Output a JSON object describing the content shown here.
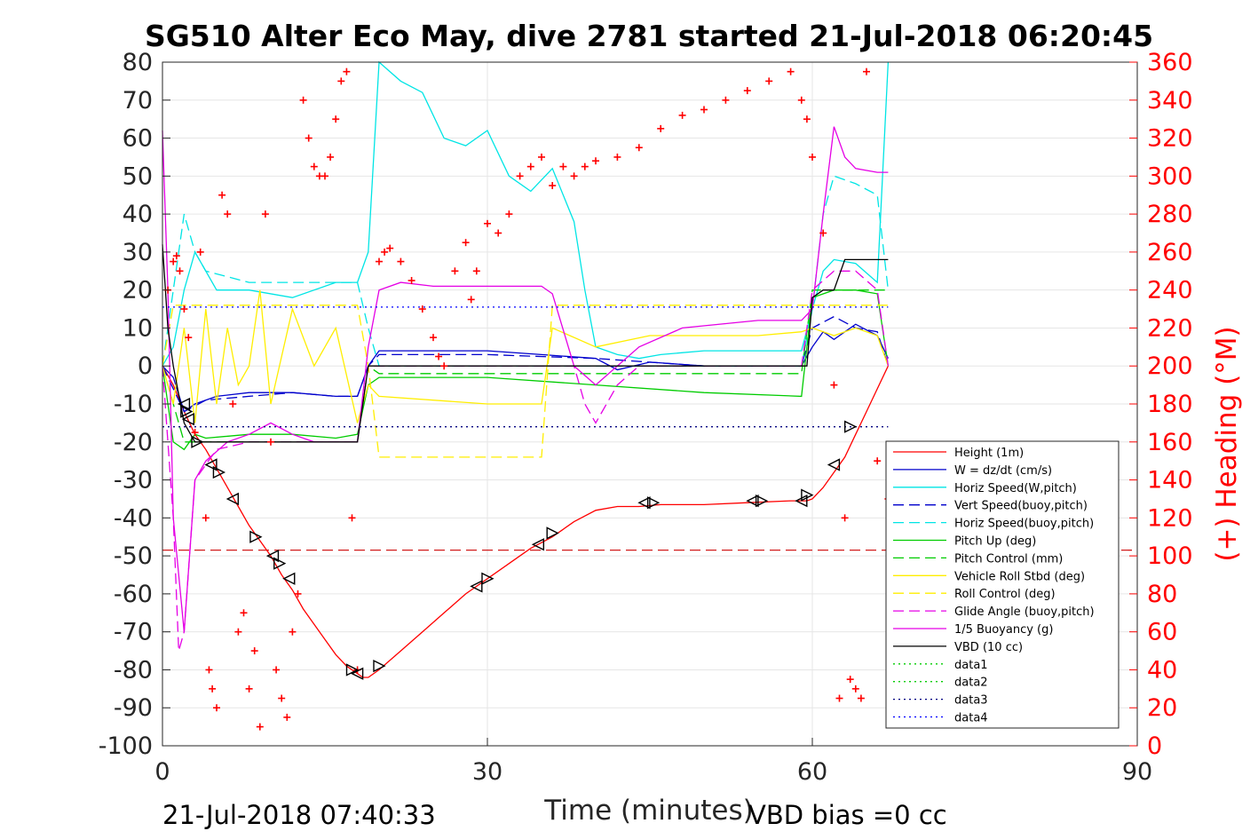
{
  "chart_data": {
    "type": "line",
    "title": "SG510 Alter Eco May, dive 2781 started 21-Jul-2018 06:20:45",
    "xlabel": "Time (minutes)",
    "ylabel_right": "(+) Heading (°M)",
    "xlim": [
      0,
      90
    ],
    "ylim_left": [
      -100,
      80
    ],
    "ylim_right": [
      0,
      360
    ],
    "x_ticks": [
      "0",
      "30",
      "60",
      "90"
    ],
    "y_ticks_left": [
      "80",
      "70",
      "60",
      "50",
      "40",
      "30",
      "20",
      "10",
      "0",
      "-10",
      "-20",
      "-30",
      "-40",
      "-50",
      "-60",
      "-70",
      "-80",
      "-90",
      "-100"
    ],
    "y_ticks_right": [
      "360",
      "340",
      "320",
      "300",
      "280",
      "260",
      "240",
      "220",
      "200",
      "180",
      "160",
      "140",
      "120",
      "100",
      "80",
      "60",
      "40",
      "20",
      "0"
    ],
    "grid": true,
    "legend_placement": "lower-right",
    "footer_left": "21-Jul-2018 07:40:33",
    "footer_right": "VBD bias =0 cc",
    "series": [
      {
        "name": "Height (1m)",
        "color": "#ff0000",
        "style": "solid",
        "x": [
          0,
          1,
          2,
          3,
          4,
          5,
          6,
          7,
          8,
          9,
          10,
          11,
          12,
          13,
          14,
          15,
          16,
          17,
          18,
          18.5,
          19,
          20,
          22,
          24,
          26,
          28,
          30,
          32,
          34,
          36,
          38,
          40,
          42,
          44,
          46,
          50,
          54,
          58,
          59.5,
          60,
          61,
          62,
          63,
          64,
          65,
          66,
          67
        ],
        "values": [
          0,
          -5,
          -12,
          -18,
          -22,
          -27,
          -32,
          -37,
          -42,
          -46,
          -50,
          -55,
          -59,
          -64,
          -68,
          -72,
          -76,
          -79,
          -81,
          -82,
          -82,
          -80,
          -75,
          -70,
          -65,
          -60,
          -56,
          -52,
          -48,
          -45,
          -41,
          -38,
          -37,
          -37,
          -36.5,
          -36.5,
          -36,
          -35.5,
          -35.5,
          -35,
          -32,
          -28,
          -24,
          -18,
          -12,
          -6,
          0
        ]
      },
      {
        "name": "W = dz/dt (cm/s)",
        "color": "#0000cc",
        "style": "solid",
        "x": [
          0,
          1,
          2,
          3,
          5,
          8,
          12,
          16,
          18,
          19,
          20,
          25,
          30,
          35,
          40,
          42,
          45,
          50,
          55,
          59,
          60,
          61,
          62,
          64,
          66,
          67
        ],
        "values": [
          0,
          -3,
          -12,
          -10,
          -8,
          -7,
          -7,
          -8,
          -8,
          0,
          4,
          4,
          4,
          3,
          2,
          -1,
          1,
          0,
          0,
          0,
          5,
          9,
          7,
          11,
          8,
          2
        ]
      },
      {
        "name": "Horiz Speed(W,pitch)",
        "color": "#00e5e5",
        "style": "solid",
        "x": [
          0,
          1,
          2,
          3,
          5,
          8,
          12,
          16,
          18,
          19,
          20,
          22,
          24,
          26,
          28,
          30,
          32,
          34,
          36,
          38,
          39,
          40,
          42,
          44,
          46,
          50,
          55,
          59,
          60,
          61,
          62,
          64,
          66,
          67
        ],
        "values": [
          0,
          5,
          20,
          30,
          20,
          20,
          18,
          22,
          22,
          30,
          80,
          75,
          72,
          60,
          58,
          62,
          50,
          46,
          52,
          38,
          20,
          5,
          3,
          2,
          3,
          4,
          4,
          4,
          15,
          25,
          28,
          27,
          22,
          80
        ]
      },
      {
        "name": "Vert Speed(buoy,pitch)",
        "color": "#0000cc",
        "style": "dashed",
        "x": [
          0,
          2,
          4,
          8,
          12,
          16,
          18,
          19,
          20,
          30,
          40,
          50,
          59,
          60,
          62,
          64,
          66,
          67
        ],
        "values": [
          0,
          -12,
          -9,
          -8,
          -7,
          -8,
          -8,
          0,
          3,
          3,
          2,
          0,
          0,
          10,
          13,
          10,
          9,
          0
        ]
      },
      {
        "name": "Horiz Speed(buoy,pitch)",
        "color": "#00e5e5",
        "style": "dashed",
        "x": [
          0,
          1,
          2,
          3,
          4,
          8,
          12,
          16,
          18,
          19,
          20,
          30,
          40,
          50,
          59,
          60,
          61,
          62,
          64,
          66,
          67
        ],
        "values": [
          0,
          20,
          40,
          30,
          25,
          22,
          22,
          22,
          22,
          10,
          0,
          0,
          0,
          0,
          0,
          15,
          40,
          50,
          48,
          45,
          20
        ]
      },
      {
        "name": "Pitch Up (deg)",
        "color": "#00cc00",
        "style": "solid",
        "x": [
          0,
          1,
          2,
          3,
          4,
          8,
          12,
          16,
          18,
          19,
          20,
          30,
          40,
          50,
          59,
          60,
          62,
          64,
          66,
          67
        ],
        "values": [
          0,
          -20,
          -22,
          -18,
          -19,
          -18,
          -18,
          -19,
          -18,
          -5,
          -3,
          -3,
          -5,
          -7,
          -8,
          18,
          20,
          20,
          19,
          0
        ]
      },
      {
        "name": "Pitch Control (mm)",
        "color": "#00cc00",
        "style": "dashed",
        "x": [
          0,
          2,
          18,
          19,
          20,
          30,
          40,
          50,
          59,
          60,
          67
        ],
        "values": [
          0,
          -20,
          -20,
          0,
          -2,
          -2,
          -2,
          -2,
          -2,
          20,
          20
        ]
      },
      {
        "name": "Vehicle Roll Stbd (deg)",
        "color": "#ffee00",
        "style": "solid",
        "x": [
          0,
          1,
          2,
          3,
          4,
          5,
          6,
          7,
          8,
          9,
          10,
          12,
          14,
          16,
          18,
          19,
          20,
          30,
          35,
          36,
          40,
          45,
          50,
          55,
          59,
          60,
          62,
          64,
          66,
          67
        ],
        "values": [
          0,
          -10,
          10,
          -15,
          15,
          -10,
          10,
          -5,
          0,
          20,
          -10,
          15,
          0,
          10,
          -15,
          -5,
          -8,
          -10,
          -10,
          10,
          5,
          8,
          8,
          8,
          9,
          10,
          8,
          10,
          8,
          0
        ]
      },
      {
        "name": "Roll Control (deg)",
        "color": "#ffee00",
        "style": "dashed",
        "x": [
          0,
          1,
          3,
          6,
          10,
          14,
          18,
          19,
          20,
          25,
          30,
          35,
          36,
          40,
          50,
          59,
          60,
          67
        ],
        "values": [
          0,
          16,
          16,
          16,
          16,
          16,
          16,
          0,
          -24,
          -24,
          -24,
          -24,
          16,
          16,
          16,
          16,
          16,
          16
        ]
      },
      {
        "name": "Glide Angle (buoy,pitch)",
        "color": "#e500e5",
        "style": "dashed",
        "x": [
          0,
          1,
          1.5,
          2,
          3,
          5,
          8,
          12,
          16,
          18,
          19,
          20,
          38,
          39,
          40,
          42,
          44,
          46,
          50,
          59,
          60,
          62,
          64,
          66,
          67
        ],
        "values": [
          0,
          -40,
          -75,
          -70,
          -30,
          -22,
          -20,
          -20,
          -20,
          -20,
          0,
          0,
          0,
          -10,
          -15,
          -5,
          0,
          0,
          0,
          0,
          20,
          25,
          25,
          20,
          0
        ]
      },
      {
        "name": "1/5 Buoyancy (g)",
        "color": "#e500e5",
        "style": "solid",
        "x": [
          0,
          0.5,
          1,
          2,
          3,
          4,
          6,
          8,
          10,
          12,
          14,
          16,
          18,
          19,
          20,
          22,
          25,
          30,
          35,
          36,
          38,
          40,
          44,
          48,
          55,
          59,
          60,
          61,
          62,
          63,
          64,
          66,
          67
        ],
        "values": [
          62,
          20,
          -40,
          -70,
          -30,
          -25,
          -20,
          -18,
          -15,
          -18,
          -20,
          -20,
          -20,
          5,
          20,
          22,
          21,
          21,
          21,
          19,
          0,
          -5,
          5,
          10,
          12,
          12,
          15,
          40,
          63,
          55,
          52,
          51,
          51
        ]
      },
      {
        "name": "VBD (10 cc)",
        "color": "#000000",
        "style": "solid",
        "x": [
          0,
          0.5,
          1,
          2,
          3,
          18,
          19,
          20,
          58,
          59,
          59.5,
          60,
          61,
          62,
          63,
          64,
          66,
          67
        ],
        "values": [
          32,
          10,
          0,
          -15,
          -20,
          -20,
          0,
          0,
          0,
          0,
          0,
          18,
          20,
          20,
          28,
          28,
          28,
          28
        ]
      },
      {
        "name": "data1",
        "color": "#00cc00",
        "style": "dotted",
        "x": [],
        "values": []
      },
      {
        "name": "data2",
        "color": "#00cc00",
        "style": "dotted",
        "x": [],
        "values": []
      },
      {
        "name": "data3",
        "color": "#000080",
        "style": "dotted",
        "x": [
          0,
          67
        ],
        "values": [
          -16,
          -16
        ]
      },
      {
        "name": "data4",
        "color": "#0000ff",
        "style": "dotted",
        "x": [
          0,
          67
        ],
        "values": [
          15.5,
          15.5
        ]
      }
    ],
    "reference_lines": [
      {
        "color": "#cc0000",
        "style": "dashed",
        "axis": "left",
        "y": -48.5
      }
    ],
    "heading_markers": {
      "color": "#ff0000",
      "symbol": "+",
      "axis": "right",
      "x": [
        0.5,
        1,
        1.3,
        1.6,
        2,
        2.4,
        3,
        3.5,
        4,
        4.3,
        4.6,
        5,
        5.5,
        6,
        6.5,
        7,
        7.5,
        8,
        8.5,
        9,
        9.5,
        10,
        10.5,
        11,
        11.5,
        12,
        12.5,
        13,
        13.5,
        14,
        14.5,
        15,
        15.5,
        16,
        16.5,
        17,
        17.5,
        18,
        20,
        20.5,
        21,
        22,
        23,
        24,
        25,
        25.5,
        26,
        27,
        28,
        28.5,
        29,
        30,
        31,
        32,
        33,
        34,
        35,
        36,
        37,
        38,
        39,
        40,
        42,
        44,
        46,
        48,
        50,
        52,
        54,
        56,
        58,
        59,
        59.5,
        60,
        61,
        62,
        62.5,
        63,
        63.5,
        64,
        64.5,
        65,
        66,
        67
      ],
      "values": [
        240,
        255,
        258,
        250,
        230,
        215,
        165,
        260,
        120,
        40,
        30,
        20,
        290,
        280,
        180,
        60,
        70,
        30,
        50,
        10,
        280,
        160,
        40,
        25,
        15,
        60,
        80,
        340,
        320,
        305,
        300,
        300,
        310,
        330,
        350,
        355,
        120,
        40,
        255,
        260,
        262,
        255,
        245,
        230,
        215,
        205,
        200,
        250,
        265,
        235,
        250,
        275,
        270,
        280,
        300,
        305,
        310,
        295,
        305,
        300,
        305,
        308,
        310,
        315,
        325,
        332,
        335,
        340,
        345,
        350,
        355,
        340,
        330,
        310,
        270,
        190,
        25,
        120,
        35,
        30,
        25,
        355,
        150,
        130
      ]
    },
    "orientation_markers": {
      "color": "#000000",
      "symbol": "triangle",
      "axis": "left",
      "x": [
        2,
        2.2,
        2.4,
        3.2,
        4.5,
        5.2,
        6.5,
        8.6,
        10.2,
        10.8,
        11.7,
        17.5,
        18,
        20,
        29,
        30,
        34.7,
        36,
        44.5,
        45.3,
        54.5,
        55.3,
        59,
        59.5,
        62,
        63.5
      ],
      "values": [
        -10,
        -12,
        -14,
        -20,
        -26,
        -28,
        -35,
        -45,
        -50,
        -52,
        -56,
        -80,
        -81,
        -79,
        -58,
        -56,
        -47,
        -44,
        -36,
        -36,
        -35.5,
        -35.5,
        -35.5,
        -34,
        -26,
        -16
      ]
    }
  }
}
